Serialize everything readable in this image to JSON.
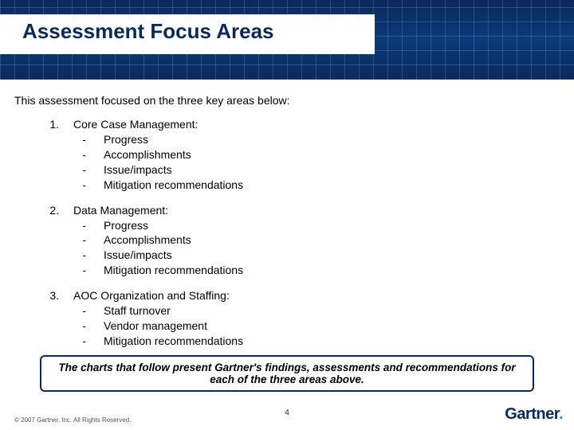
{
  "colors": {
    "brand_blue": "#0a2a5a",
    "accent_cyan": "#1aa0d8",
    "text": "#000000",
    "footer_text": "#555555",
    "background": "#ffffff"
  },
  "typography": {
    "title_fontsize_pt": 26,
    "body_fontsize_pt": 14,
    "callout_fontsize_pt": 13.5,
    "footer_fontsize_pt": 8,
    "pagenum_fontsize_pt": 10,
    "logo_fontsize_pt": 20,
    "font_family": "Arial"
  },
  "title": "Assessment Focus Areas",
  "intro": "This assessment focused on the three key areas below:",
  "items": [
    {
      "num": "1.",
      "title": "Core Case Management:",
      "subs": [
        "Progress",
        "Accomplishments",
        "Issue/impacts",
        "Mitigation recommendations"
      ]
    },
    {
      "num": "2.",
      "title": "Data Management:",
      "subs": [
        "Progress",
        "Accomplishments",
        "Issue/impacts",
        "Mitigation recommendations"
      ]
    },
    {
      "num": "3.",
      "title": "AOC Organization and Staffing:",
      "subs": [
        "Staff turnover",
        "Vendor management",
        "Mitigation recommendations"
      ]
    }
  ],
  "callout": "The charts that follow present Gartner's findings, assessments and recommendations for each of the three areas above.",
  "footer": "© 2007 Gartner, Inc. All Rights Reserved.",
  "page_number": "4",
  "logo_text": "Gartner",
  "bullet_dash": "-"
}
